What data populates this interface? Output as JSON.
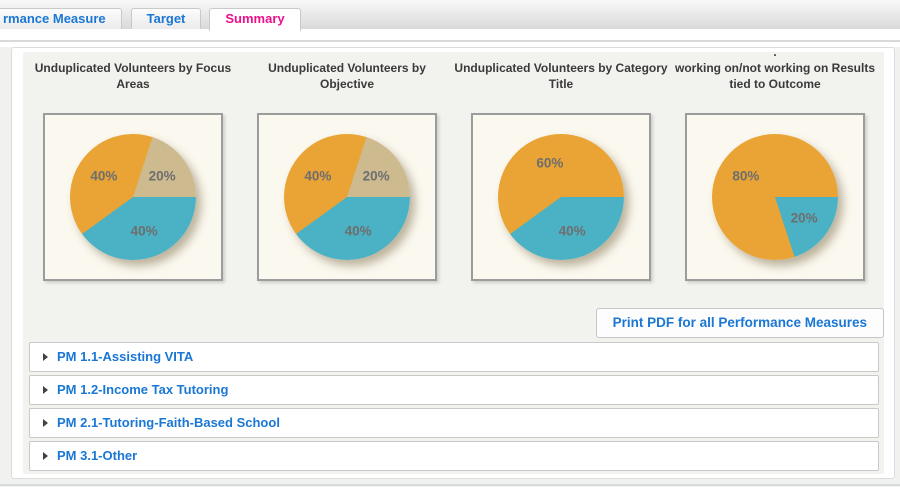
{
  "tabs": [
    {
      "label": "rmance Measure",
      "active": false
    },
    {
      "label": "Target",
      "active": false
    },
    {
      "label": "Summary",
      "active": true
    }
  ],
  "colors": {
    "link_blue": "#1a77d4",
    "active_tab_pink": "#ee0f8a",
    "pie_orange": "#e9a435",
    "pie_teal": "#4bb1c4",
    "pie_tan": "#cdba8f",
    "chart_bg": "#fbf8ef"
  },
  "chart_data": [
    {
      "type": "pie",
      "title": "Unduplicated Volunteers by Focus Areas",
      "title_lines": [
        "Unduplicated Volunteers by Focus",
        "Areas"
      ],
      "slices": [
        {
          "label": "40%",
          "value": 40,
          "color": "#4bb1c4"
        },
        {
          "label": "40%",
          "value": 40,
          "color": "#e9a435"
        },
        {
          "label": "20%",
          "value": 20,
          "color": "#cdba8f"
        }
      ]
    },
    {
      "type": "pie",
      "title": "Unduplicated Volunteers by Objective",
      "title_lines": [
        "Unduplicated Volunteers by",
        "Objective"
      ],
      "slices": [
        {
          "label": "40%",
          "value": 40,
          "color": "#4bb1c4"
        },
        {
          "label": "40%",
          "value": 40,
          "color": "#e9a435"
        },
        {
          "label": "20%",
          "value": 20,
          "color": "#cdba8f"
        }
      ]
    },
    {
      "type": "pie",
      "title": "Unduplicated Volunteers by Category Title",
      "title_lines": [
        "Unduplicated Volunteers by Category",
        "Title"
      ],
      "slices": [
        {
          "label": "40%",
          "value": 40,
          "color": "#4bb1c4"
        },
        {
          "label": "60%",
          "value": 60,
          "color": "#e9a435"
        }
      ]
    },
    {
      "type": "pie",
      "title": ". working on/not working on Results tied to Outcome",
      "title_lines": [
        ".",
        "working on/not working on Results",
        "tied to Outcome"
      ],
      "slices": [
        {
          "label": "20%",
          "value": 20,
          "color": "#4bb1c4"
        },
        {
          "label": "80%",
          "value": 80,
          "color": "#e9a435"
        }
      ]
    }
  ],
  "print_button": {
    "label": "Print PDF for all Performance Measures"
  },
  "accordion": {
    "items": [
      {
        "label": "PM 1.1-Assisting VITA"
      },
      {
        "label": "PM 1.2-Income Tax Tutoring"
      },
      {
        "label": "PM 2.1-Tutoring-Faith-Based School"
      },
      {
        "label": "PM 3.1-Other"
      }
    ]
  }
}
